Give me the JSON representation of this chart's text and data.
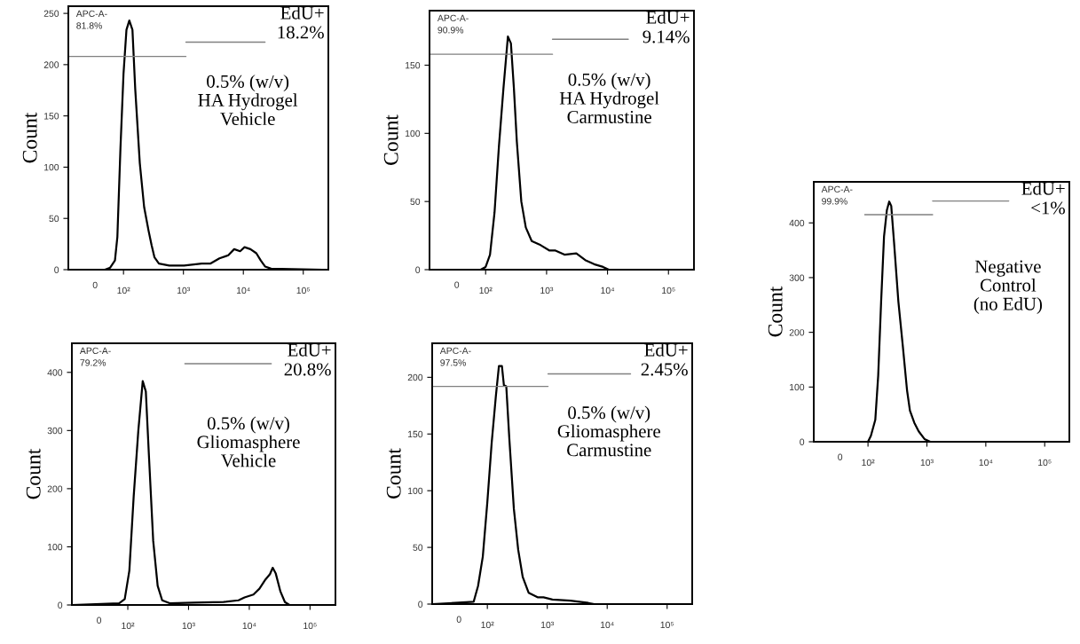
{
  "chart_data": [
    {
      "type": "line",
      "log": "x",
      "ylabel": "Count",
      "xlim": [
        12,
        262144
      ],
      "xticks": [
        {
          "value": 100,
          "label": "10²"
        },
        {
          "value": 1000,
          "label": "10³"
        },
        {
          "value": 10000,
          "label": "10⁴"
        },
        {
          "value": 100000,
          "label": "10⁵"
        }
      ],
      "ylim": [
        0,
        257
      ],
      "yticks": [
        0,
        50,
        100,
        150,
        200,
        250
      ],
      "grid": false,
      "series": [
        {
          "color": "#000000",
          "x": [
            12,
            49,
            60,
            72,
            79,
            89,
            100,
            112,
            125,
            141,
            157,
            187,
            221,
            262,
            294,
            329,
            390,
            580,
            1023,
            2020,
            2840,
            3990,
            5610,
            7030,
            8830,
            10470,
            13130,
            16480,
            19530,
            23170,
            29040,
            211000
          ],
          "values": [
            0,
            0,
            2,
            9,
            32,
            119,
            191,
            234,
            243,
            234,
            176,
            104,
            61,
            38,
            24,
            12,
            6,
            4,
            4,
            6,
            6,
            11,
            14,
            20,
            18,
            22,
            20,
            16,
            9,
            3,
            1,
            0
          ]
        },
        {
          "color": "#808080",
          "x": [
            12,
            1100
          ],
          "values": [
            208,
            208
          ]
        },
        {
          "color": "#808080",
          "x": [
            1100,
            23000
          ],
          "values": [
            222,
            222
          ]
        }
      ],
      "annotations": [
        "APC-A-\n81.8%",
        "EdU+\n18.2%",
        "0.5% (w/v)\nHA Hydrogel\nVehicle",
        "0"
      ]
    },
    {
      "type": "line",
      "log": "x",
      "ylabel": "Count",
      "xlim": [
        12,
        262144
      ],
      "xticks": [
        {
          "value": 100,
          "label": "10²"
        },
        {
          "value": 1000,
          "label": "10³"
        },
        {
          "value": 10000,
          "label": "10⁴"
        },
        {
          "value": 100000,
          "label": "10⁵"
        }
      ],
      "ylim": [
        0,
        190
      ],
      "yticks": [
        0,
        50,
        100,
        150
      ],
      "grid": false,
      "series": [
        {
          "color": "#000000",
          "x": [
            12,
            83,
            100,
            118,
            140,
            165,
            196,
            232,
            260,
            291,
            325,
            385,
            456,
            570,
            798,
            1119,
            1400,
            1963,
            3076,
            4305,
            6030,
            8450,
            10500,
            200000
          ],
          "values": [
            0,
            0,
            2,
            11,
            42,
            90,
            133,
            171,
            166,
            133,
            94,
            50,
            31,
            21,
            18,
            14,
            14,
            11,
            12,
            7,
            4,
            2,
            0,
            0
          ]
        },
        {
          "color": "#808080",
          "x": [
            12,
            1250
          ],
          "values": [
            158,
            158
          ]
        },
        {
          "color": "#808080",
          "x": [
            1250,
            21900
          ],
          "values": [
            169,
            169
          ]
        }
      ],
      "annotations": [
        "APC-A-\n90.9%",
        "EdU+\n9.14%",
        "0.5% (w/v)\nHA Hydrogel\nCarmustine",
        "0"
      ]
    },
    {
      "type": "line",
      "log": "x",
      "ylabel": "Count",
      "xlim": [
        12,
        262144
      ],
      "xticks": [
        {
          "value": 100,
          "label": "10²"
        },
        {
          "value": 1000,
          "label": "10³"
        },
        {
          "value": 10000,
          "label": "10⁴"
        },
        {
          "value": 100000,
          "label": "10⁵"
        }
      ],
      "ylim": [
        0,
        475
      ],
      "yticks": [
        0,
        100,
        200,
        300,
        400
      ],
      "grid": false,
      "series": [
        {
          "color": "#000000",
          "x": [
            12,
            100,
            112,
            133,
            149,
            167,
            187,
            209,
            229,
            248,
            277,
            328,
            390,
            460,
            515,
            610,
            725,
            910,
            1140,
            262144
          ],
          "values": [
            0,
            0,
            11,
            40,
            121,
            256,
            375,
            423,
            439,
            431,
            364,
            256,
            175,
            94,
            57,
            35,
            19,
            5,
            0,
            0
          ]
        },
        {
          "color": "#808080",
          "x": [
            88,
            1250
          ],
          "values": [
            415,
            415
          ]
        },
        {
          "color": "#808080",
          "x": [
            1250,
            24500
          ],
          "values": [
            440,
            440
          ]
        }
      ],
      "annotations": [
        "APC-A-\n99.9%",
        "EdU+\n<1%",
        "Negative\nControl\n(no EdU)",
        "0"
      ]
    },
    {
      "type": "line",
      "log": "x",
      "ylabel": "Count",
      "xlim": [
        12,
        262144
      ],
      "xticks": [
        {
          "value": 100,
          "label": "10²"
        },
        {
          "value": 1000,
          "label": "10³"
        },
        {
          "value": 10000,
          "label": "10⁴"
        },
        {
          "value": 100000,
          "label": "10⁵"
        }
      ],
      "ylim": [
        0,
        450
      ],
      "yticks": [
        0,
        100,
        200,
        300,
        400
      ],
      "grid": false,
      "series": [
        {
          "color": "#000000",
          "x": [
            12,
            72,
            89,
            106,
            125,
            149,
            176,
            198,
            221,
            262,
            310,
            368,
            489,
            1210,
            3770,
            6640,
            8350,
            11700,
            14700,
            18500,
            21900,
            24300,
            27300,
            32600,
            38600,
            45800,
            262144
          ],
          "values": [
            0,
            3,
            10,
            59,
            187,
            300,
            385,
            367,
            264,
            110,
            33,
            8,
            3,
            4,
            5,
            8,
            13,
            18,
            28,
            44,
            53,
            64,
            54,
            23,
            5,
            0,
            0
          ]
        },
        {
          "color": "#808080",
          "x": [
            870,
            23000
          ],
          "values": [
            415,
            415
          ]
        }
      ],
      "annotations": [
        "APC-A-\n79.2%",
        "EdU+\n20.8%",
        "0.5% (w/v)\nGliomasphere\nVehicle",
        "0"
      ]
    },
    {
      "type": "line",
      "log": "x",
      "ylabel": "Count",
      "xlim": [
        12,
        262144
      ],
      "xticks": [
        {
          "value": 100,
          "label": "10²"
        },
        {
          "value": 1000,
          "label": "10³"
        },
        {
          "value": 10000,
          "label": "10⁴"
        },
        {
          "value": 100000,
          "label": "10⁵"
        }
      ],
      "ylim": [
        0,
        230
      ],
      "yticks": [
        0,
        50,
        100,
        150,
        200
      ],
      "grid": false,
      "series": [
        {
          "color": "#000000",
          "x": [
            12,
            59,
            70,
            84,
            100,
            118,
            139,
            156,
            175,
            189,
            207,
            232,
            277,
            327,
            389,
            488,
            688,
            866,
            1220,
            2430,
            4840,
            6090,
            262144
          ],
          "values": [
            0,
            2,
            16,
            42,
            90,
            142,
            184,
            210,
            210,
            193,
            192,
            147,
            84,
            48,
            24,
            10,
            6,
            6,
            4,
            3,
            1,
            0,
            0
          ]
        },
        {
          "color": "#808080",
          "x": [
            12,
            1030
          ],
          "values": [
            192,
            192
          ]
        },
        {
          "color": "#808080",
          "x": [
            1030,
            24500
          ],
          "values": [
            203,
            203
          ]
        }
      ],
      "annotations": [
        "APC-A-\n97.5%",
        "EdU+\n2.45%",
        "0.5% (w/v)\nGliomasphere\nCarmustine",
        "0"
      ]
    }
  ]
}
